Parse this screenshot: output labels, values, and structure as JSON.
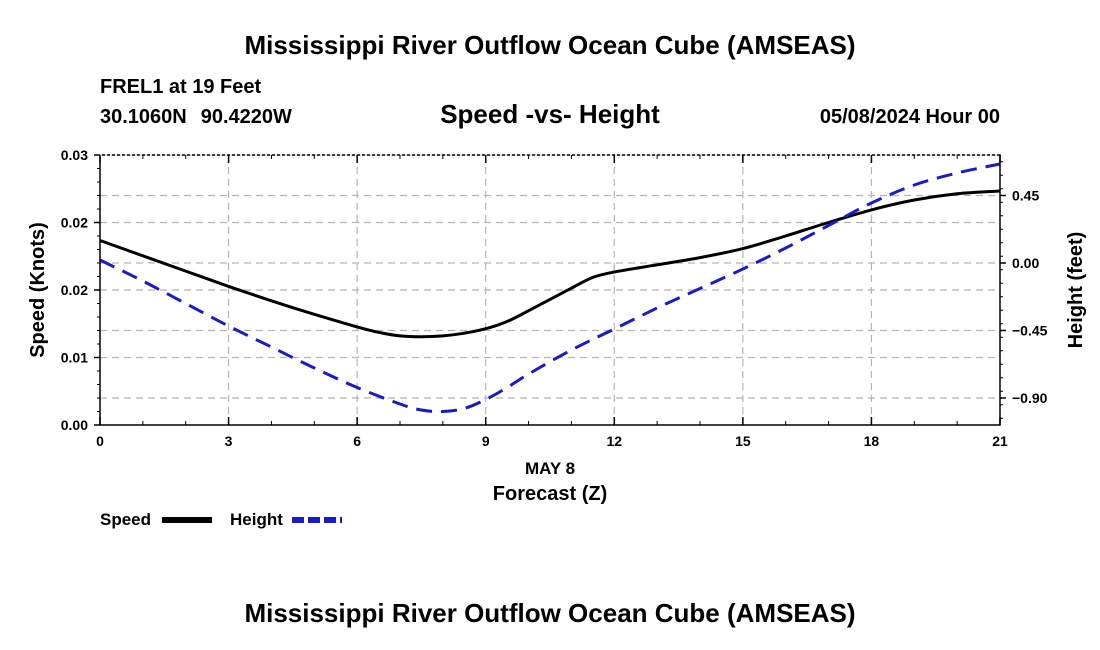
{
  "header": {
    "title": "Mississippi River Outflow Ocean Cube (AMSEAS)",
    "station": "FREL1 at 19 Feet",
    "lat": "30.1060N",
    "lon": "90.4220W",
    "subtitle": "Speed -vs- Height",
    "datetime": "05/08/2024 Hour 00"
  },
  "footer": {
    "title": "Mississippi River Outflow Ocean Cube (AMSEAS)"
  },
  "colors": {
    "speed": "#000000",
    "height": "#1a1acc",
    "grid": "#b4b4b4"
  },
  "chart_data": {
    "type": "line",
    "title": "Speed -vs- Height",
    "xlabel": "Forecast (Z)",
    "date_label": "MAY 8",
    "ylabel_left": "Speed (Knots)",
    "ylabel_right": "Height (feet)",
    "x_ticks": [
      "0",
      "3",
      "6",
      "9",
      "12",
      "15",
      "18",
      "21"
    ],
    "x_tick_values": [
      0,
      3,
      6,
      9,
      12,
      15,
      18,
      21
    ],
    "xlim": [
      0,
      21
    ],
    "y_left_ticks": [
      "0.00",
      "0.01",
      "0.02",
      "0.02",
      "0.03"
    ],
    "y_left_tick_values": [
      0,
      0.0075,
      0.015,
      0.0225,
      0.03
    ],
    "y_left_range": [
      0,
      0.03
    ],
    "y_right_ticks": [
      "0.45",
      "0.00",
      "−0.45",
      "−0.90"
    ],
    "y_right_tick_values": [
      0.45,
      0.0,
      -0.45,
      -0.9
    ],
    "y_right_range": [
      -1.08,
      0.72
    ],
    "grid": true,
    "series": [
      {
        "name": "Speed",
        "axis": "left",
        "style": "solid",
        "x": [
          0,
          1,
          2,
          3,
          4,
          5,
          6,
          6.5,
          7,
          7.5,
          8,
          8.5,
          9,
          9.5,
          10,
          11,
          11.5,
          12,
          13,
          14,
          15,
          16,
          17,
          18,
          19,
          20,
          21
        ],
        "y": [
          0.0205,
          0.0188,
          0.0171,
          0.0154,
          0.0138,
          0.0123,
          0.0109,
          0.0103,
          0.0099,
          0.0098,
          0.0099,
          0.0102,
          0.0107,
          0.0115,
          0.0127,
          0.0152,
          0.0164,
          0.017,
          0.0178,
          0.0186,
          0.0196,
          0.021,
          0.0225,
          0.0239,
          0.025,
          0.0257,
          0.026
        ]
      },
      {
        "name": "Height",
        "axis": "right",
        "style": "dashed",
        "x": [
          0,
          1,
          2,
          3,
          4,
          5,
          6,
          7,
          7.5,
          8,
          8.5,
          9,
          9.5,
          10,
          11,
          12,
          13,
          14,
          15,
          16,
          17,
          18,
          19,
          20,
          21
        ],
        "y": [
          0.02,
          -0.12,
          -0.27,
          -0.42,
          -0.56,
          -0.7,
          -0.83,
          -0.94,
          -0.98,
          -0.99,
          -0.97,
          -0.91,
          -0.83,
          -0.74,
          -0.58,
          -0.44,
          -0.3,
          -0.17,
          -0.04,
          0.1,
          0.25,
          0.4,
          0.52,
          0.6,
          0.66
        ]
      }
    ],
    "legend": [
      {
        "label": "Speed",
        "style": "solid"
      },
      {
        "label": "Height",
        "style": "dashed"
      }
    ],
    "legend_position": "bottom-left"
  }
}
